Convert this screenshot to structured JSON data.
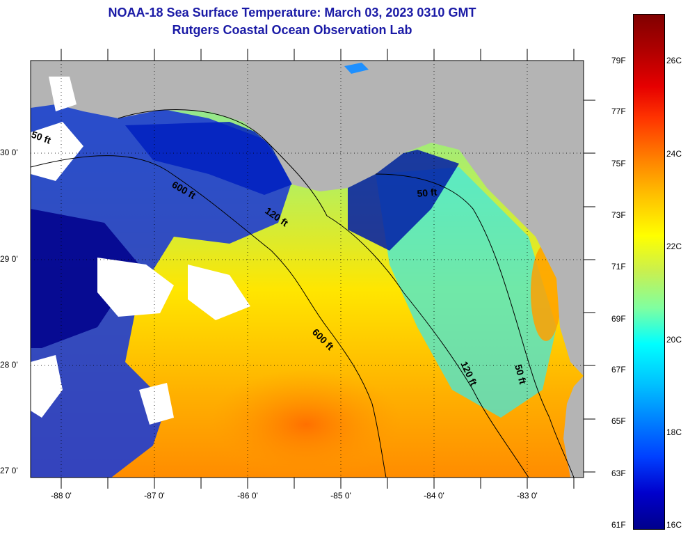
{
  "header": {
    "title": "NOAA-18 Sea Surface Temperature:  March 03, 2023 0310 GMT",
    "subtitle": "Rutgers Coastal Ocean Observation Lab"
  },
  "map": {
    "lat_labels": [
      "30 0'",
      "29 0'",
      "28 0'",
      "27 0'"
    ],
    "lon_labels": [
      "-88 0'",
      "-87 0'",
      "-86 0'",
      "-85 0'",
      "-84 0'",
      "-83 0'"
    ],
    "contour_labels": [
      "50 ft",
      "600 ft",
      "120 ft",
      "50 ft",
      "600 ft",
      "120 ft",
      "50 ft"
    ],
    "colors": {
      "land": "#b4b4b4",
      "cloud": "#ffffff",
      "warm": "#ff8c00",
      "cold": "#00008b"
    }
  },
  "colorbar": {
    "fahrenheit": [
      "79F",
      "77F",
      "75F",
      "73F",
      "71F",
      "69F",
      "67F",
      "65F",
      "63F",
      "61F"
    ],
    "celsius": [
      "26C",
      "24C",
      "22C",
      "20C",
      "18C",
      "16C"
    ]
  }
}
